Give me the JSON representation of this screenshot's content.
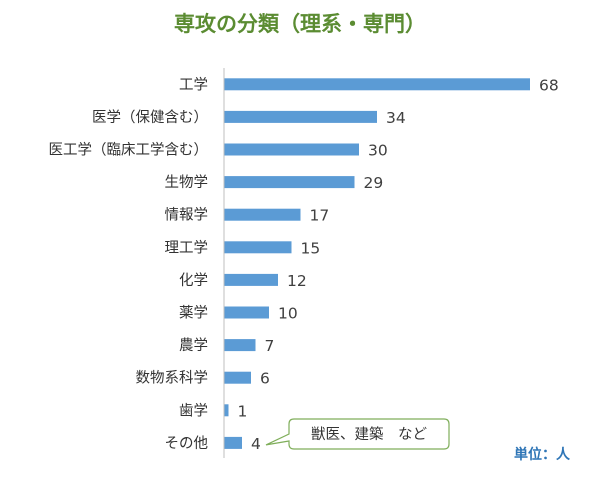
{
  "colors": {
    "title": "#5b8c32",
    "bar": "#5b9bd5",
    "unit": "#2e75b6",
    "axis": "#bfbfbf",
    "callout_border": "#7fae5a"
  },
  "unit_label": "単位：人",
  "annotation": "獣医、建築　など",
  "chart_data": {
    "type": "bar",
    "orientation": "horizontal",
    "title": "専攻の分類（理系・専門）",
    "categories": [
      "工学",
      "医学（保健含む）",
      "医工学（臨床工学含む）",
      "生物学",
      "情報学",
      "理工学",
      "化学",
      "薬学",
      "農学",
      "数物系科学",
      "歯学",
      "その他"
    ],
    "values": [
      68,
      34,
      30,
      29,
      17,
      15,
      12,
      10,
      7,
      6,
      1,
      4
    ],
    "xlim": [
      0,
      80
    ],
    "grid": false,
    "data_labels": true,
    "legend": "none"
  }
}
